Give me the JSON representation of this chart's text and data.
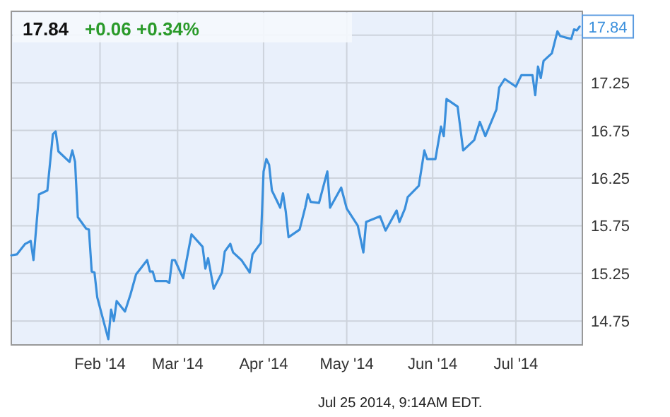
{
  "chart_data": {
    "type": "line",
    "title": "17.84",
    "subtitle": "+0.06 +0.34%",
    "annotations": [
      {
        "text": "17.84",
        "x": "2014-07-24",
        "y": 17.84
      },
      "Jul 25 2014, 9:14AM EDT."
    ],
    "xlim": [
      "2013-12-31",
      "2014-07-25"
    ],
    "xticks": [
      {
        "value": "2014-02-01",
        "label": "Feb '14"
      },
      {
        "value": "2014-03-01",
        "label": "Mar '14"
      },
      {
        "value": "2014-04-01",
        "label": "Apr '14"
      },
      {
        "value": "2014-05-01",
        "label": "May '14"
      },
      {
        "value": "2014-06-01",
        "label": "Jun '14"
      },
      {
        "value": "2014-07-01",
        "label": "Jul '14"
      }
    ],
    "ylim": [
      14.5,
      18.0
    ],
    "yticks": [
      14.75,
      15.25,
      15.75,
      16.25,
      16.75,
      17.25,
      {
        "value": 17.75,
        "label": null
      }
    ],
    "grid": true,
    "marker": "none",
    "line_style": "solid",
    "series": [
      {
        "color": "#3a8fdc",
        "x": [
          "2013-12-31",
          "2014-01-02",
          "2014-01-05",
          "2014-01-07",
          "2014-01-08",
          "2014-01-10",
          "2014-01-13",
          "2014-01-15",
          "2014-01-16",
          "2014-01-17",
          "2014-01-21",
          "2014-01-22",
          "2014-01-23",
          "2014-01-24",
          "2014-01-27",
          "2014-01-28",
          "2014-01-29",
          "2014-01-30",
          "2014-01-31",
          "2014-02-04",
          "2014-02-05",
          "2014-02-06",
          "2014-02-07",
          "2014-02-10",
          "2014-02-12",
          "2014-02-14",
          "2014-02-18",
          "2014-02-19",
          "2014-02-20",
          "2014-02-21",
          "2014-02-25",
          "2014-02-26",
          "2014-02-27",
          "2014-02-28",
          "2014-03-03",
          "2014-03-06",
          "2014-03-10",
          "2014-03-11",
          "2014-03-12",
          "2014-03-14",
          "2014-03-17",
          "2014-03-18",
          "2014-03-20",
          "2014-03-21",
          "2014-03-24",
          "2014-03-27",
          "2014-03-28",
          "2014-03-31",
          "2014-04-01",
          "2014-04-02",
          "2014-04-03",
          "2014-04-04",
          "2014-04-07",
          "2014-04-08",
          "2014-04-09",
          "2014-04-10",
          "2014-04-14",
          "2014-04-16",
          "2014-04-17",
          "2014-04-18",
          "2014-04-21",
          "2014-04-24",
          "2014-04-25",
          "2014-04-29",
          "2014-05-01",
          "2014-05-05",
          "2014-05-07",
          "2014-05-08",
          "2014-05-13",
          "2014-05-15",
          "2014-05-19",
          "2014-05-20",
          "2014-05-22",
          "2014-05-23",
          "2014-05-27",
          "2014-05-29",
          "2014-05-30",
          "2014-06-02",
          "2014-06-04",
          "2014-06-05",
          "2014-06-06",
          "2014-06-10",
          "2014-06-12",
          "2014-06-16",
          "2014-06-18",
          "2014-06-20",
          "2014-06-24",
          "2014-06-25",
          "2014-06-27",
          "2014-07-01",
          "2014-07-03",
          "2014-07-07",
          "2014-07-08",
          "2014-07-09",
          "2014-07-10",
          "2014-07-11",
          "2014-07-14",
          "2014-07-16",
          "2014-07-17",
          "2014-07-21",
          "2014-07-22",
          "2014-07-23",
          "2014-07-24"
        ],
        "values": [
          15.44,
          15.45,
          15.56,
          15.59,
          15.39,
          16.08,
          16.12,
          16.71,
          16.74,
          16.53,
          16.42,
          16.54,
          16.42,
          15.84,
          15.72,
          15.71,
          15.27,
          15.26,
          15.0,
          14.56,
          14.87,
          14.75,
          14.96,
          14.85,
          15.03,
          15.24,
          15.39,
          15.27,
          15.27,
          15.17,
          15.17,
          15.15,
          15.39,
          15.39,
          15.2,
          15.66,
          15.53,
          15.3,
          15.41,
          15.09,
          15.26,
          15.48,
          15.56,
          15.47,
          15.39,
          15.26,
          15.45,
          15.57,
          16.32,
          16.45,
          16.39,
          16.12,
          15.94,
          16.09,
          15.9,
          15.63,
          15.71,
          15.94,
          16.08,
          16.0,
          15.99,
          16.32,
          15.94,
          16.15,
          15.93,
          15.75,
          15.47,
          15.79,
          15.85,
          15.7,
          15.91,
          15.79,
          15.93,
          16.05,
          16.17,
          16.54,
          16.45,
          16.45,
          16.79,
          16.69,
          17.08,
          17.0,
          16.54,
          16.65,
          16.84,
          16.69,
          16.97,
          17.2,
          17.29,
          17.21,
          17.33,
          17.33,
          17.12,
          17.42,
          17.3,
          17.48,
          17.56,
          17.79,
          17.74,
          17.71,
          17.81,
          17.8,
          17.84
        ]
      }
    ]
  }
}
